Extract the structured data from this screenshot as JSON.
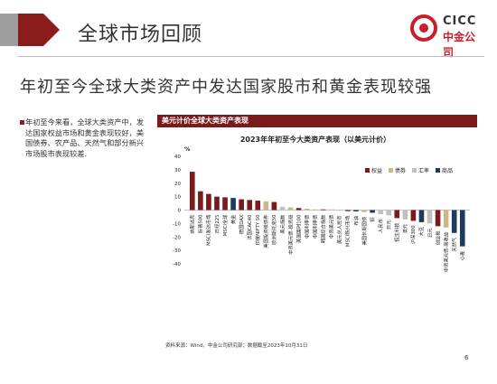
{
  "header": {
    "title": "全球市场回顾"
  },
  "logo": {
    "en": "CICC",
    "cn": "中金公司"
  },
  "subtitle": "年初至今全球大类资产中发达国家股市和黄金表现较强",
  "summary": "年初至今来看，全球大类资产中，发达国家权益市场和黄金表现较好，美国债券、农产品、天然气和部分新兴市场股市表现较差.",
  "chart_header": "美元计价全球大类资产表现",
  "source": "资料来源：Wind，中金公司研究部；数据截至2023年10月31日",
  "page_number": "6",
  "colors": {
    "equity": "#7a1a1a",
    "bond": "#c9b88a",
    "fx": "#c0c0c0",
    "commodity": "#1f3a5f",
    "brand_red": "#8b1c1c"
  },
  "chart_data": {
    "type": "bar",
    "title": "2023年年初至今大类资产表现（以美元计价）",
    "ylabel": "%",
    "ylim": [
      -40,
      40
    ],
    "yticks": [
      40,
      30,
      20,
      10,
      0,
      -10,
      -20,
      -30,
      -40
    ],
    "legend": [
      "权益",
      "债券",
      "汇率",
      "商品"
    ],
    "legend_position": "top-right",
    "categories": [
      "纳斯达克",
      "标普500",
      "MSCI发达市场",
      "日经225",
      "MSCI全球",
      "黄金",
      "德国DAX",
      "法国CAC40",
      "印度NIFTY 50",
      "美国投资级债券",
      "欧洲斯托克50",
      "美元指数",
      "中资美元债-投资级",
      "美国富时100",
      "中国利率债",
      "中国利率债",
      "韩国综合指数",
      "中资美元债",
      "美元兑人民币",
      "MSCI新兴市场",
      "布油",
      "美国长期国债",
      "铜",
      "人民币",
      "日元",
      "恒生科技",
      "澳元",
      "沪深300",
      "大豆",
      "日元",
      "创业板",
      "中资美元债-高收益",
      "天然气",
      "小麦"
    ],
    "values": [
      28.5,
      14,
      12,
      10,
      9.5,
      9,
      8,
      7.5,
      7,
      6.5,
      6,
      2.5,
      2,
      1.5,
      1,
      0.5,
      0.5,
      0.5,
      -0.5,
      -0.8,
      -1,
      -1.5,
      -2,
      -3,
      -4,
      -6,
      -7,
      -8,
      -9,
      -10,
      -12,
      -13,
      -17,
      -27
    ],
    "groups": [
      "equity",
      "equity",
      "equity",
      "equity",
      "equity",
      "commodity",
      "equity",
      "equity",
      "equity",
      "bond",
      "equity",
      "fx",
      "bond",
      "equity",
      "bond",
      "bond",
      "equity",
      "bond",
      "fx",
      "equity",
      "commodity",
      "bond",
      "commodity",
      "fx",
      "fx",
      "equity",
      "fx",
      "equity",
      "commodity",
      "fx",
      "equity",
      "bond",
      "commodity",
      "commodity"
    ]
  }
}
